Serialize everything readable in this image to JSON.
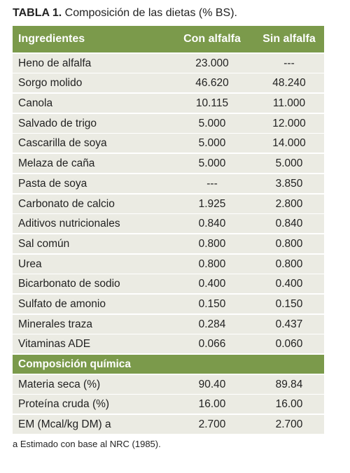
{
  "title": {
    "label": "TABLA 1.",
    "text": "Composición de las dietas (% BS)."
  },
  "table": {
    "header": [
      "Ingredientes",
      "Con alfalfa",
      "Sin alfalfa"
    ],
    "rows": [
      [
        "Heno de alfalfa",
        "23.000",
        "---"
      ],
      [
        "Sorgo molido",
        "46.620",
        "48.240"
      ],
      [
        "Canola",
        "10.115",
        "11.000"
      ],
      [
        "Salvado de trigo",
        "5.000",
        "12.000"
      ],
      [
        "Cascarilla de soya",
        "5.000",
        "14.000"
      ],
      [
        "Melaza de caña",
        "5.000",
        "5.000"
      ],
      [
        "Pasta de soya",
        "---",
        "3.850"
      ],
      [
        "Carbonato de calcio",
        "1.925",
        "2.800"
      ],
      [
        "Aditivos nutricionales",
        "0.840",
        "0.840"
      ],
      [
        "Sal común",
        "0.800",
        "0.800"
      ],
      [
        "Urea",
        "0.800",
        "0.800"
      ],
      [
        "Bicarbonato de sodio",
        "0.400",
        "0.400"
      ],
      [
        "Sulfato de amonio",
        "0.150",
        "0.150"
      ],
      [
        "Minerales traza",
        "0.284",
        "0.437"
      ],
      [
        "Vitaminas ADE",
        "0.066",
        "0.060"
      ]
    ],
    "section": "Composición química",
    "section_rows": [
      [
        "Materia seca (%)",
        "90.40",
        "89.84"
      ],
      [
        "Proteína cruda (%)",
        "16.00",
        "16.00"
      ],
      [
        "EM (Mcal/kg DM) a",
        "2.700",
        "2.700"
      ]
    ]
  },
  "footnote": "a Estimado con base al NRC (1985)."
}
